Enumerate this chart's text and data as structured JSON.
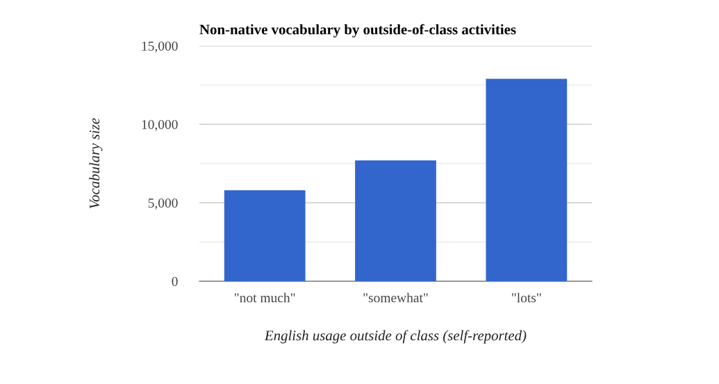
{
  "chart_data": {
    "type": "bar",
    "title": "Non-native vocabulary by outside-of-class activities",
    "xlabel": "English usage outside of class (self-reported)",
    "ylabel": "Vocabulary size",
    "categories": [
      "\"not much\"",
      "\"somewhat\"",
      "\"lots\""
    ],
    "values": [
      5800,
      7700,
      12900
    ],
    "color": "#3366cc",
    "ylim": [
      0,
      15000
    ],
    "yticks": [
      {
        "value": 0,
        "label": "0"
      },
      {
        "value": 2500,
        "label": null
      },
      {
        "value": 5000,
        "label": "5,000"
      },
      {
        "value": 7500,
        "label": null
      },
      {
        "value": 10000,
        "label": "10,000"
      },
      {
        "value": 12500,
        "label": null
      },
      {
        "value": 15000,
        "label": "15,000"
      }
    ],
    "grid": "y",
    "legend": false
  }
}
